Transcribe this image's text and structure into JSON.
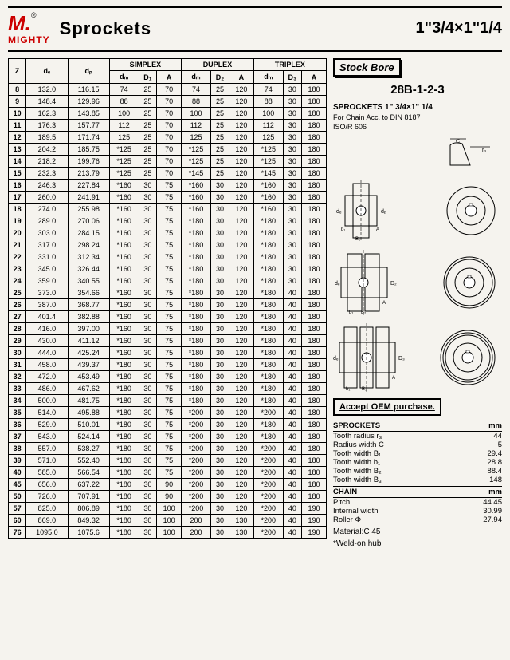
{
  "header": {
    "brand": "MIGHTY",
    "logo": "M.",
    "reg": "®",
    "title": "Sprockets",
    "size": "1\"3/4×1\"1/4"
  },
  "table": {
    "group_headers": [
      "SIMPLEX",
      "DUPLEX",
      "TRIPLEX"
    ],
    "cols": [
      "Z",
      "dₑ",
      "dₚ",
      "dₘ",
      "D₁",
      "A",
      "dₘ",
      "D₂",
      "A",
      "dₘ",
      "D₃",
      "A"
    ],
    "sections": [
      {
        "rows": [
          [
            "8",
            "132.0",
            "116.15",
            "74",
            "25",
            "70",
            "74",
            "25",
            "120",
            "74",
            "30",
            "180"
          ],
          [
            "9",
            "148.4",
            "129.96",
            "88",
            "25",
            "70",
            "88",
            "25",
            "120",
            "88",
            "30",
            "180"
          ],
          [
            "10",
            "162.3",
            "143.85",
            "100",
            "25",
            "70",
            "100",
            "25",
            "120",
            "100",
            "30",
            "180"
          ],
          [
            "11",
            "176.3",
            "157.77",
            "112",
            "25",
            "70",
            "112",
            "25",
            "120",
            "112",
            "30",
            "180"
          ],
          [
            "12",
            "189.5",
            "171.74",
            "125",
            "25",
            "70",
            "125",
            "25",
            "120",
            "125",
            "30",
            "180"
          ]
        ]
      },
      {
        "rows": [
          [
            "13",
            "204.2",
            "185.75",
            "*125",
            "25",
            "70",
            "*125",
            "25",
            "120",
            "*125",
            "30",
            "180"
          ],
          [
            "14",
            "218.2",
            "199.76",
            "*125",
            "25",
            "70",
            "*125",
            "25",
            "120",
            "*125",
            "30",
            "180"
          ],
          [
            "15",
            "232.3",
            "213.79",
            "*125",
            "25",
            "70",
            "*145",
            "25",
            "120",
            "*145",
            "30",
            "180"
          ],
          [
            "16",
            "246.3",
            "227.84",
            "*160",
            "30",
            "75",
            "*160",
            "30",
            "120",
            "*160",
            "30",
            "180"
          ],
          [
            "17",
            "260.0",
            "241.91",
            "*160",
            "30",
            "75",
            "*160",
            "30",
            "120",
            "*160",
            "30",
            "180"
          ]
        ]
      },
      {
        "rows": [
          [
            "18",
            "274.0",
            "255.98",
            "*160",
            "30",
            "75",
            "*160",
            "30",
            "120",
            "*160",
            "30",
            "180"
          ],
          [
            "19",
            "289.0",
            "270.06",
            "*160",
            "30",
            "75",
            "*180",
            "30",
            "120",
            "*180",
            "30",
            "180"
          ],
          [
            "20",
            "303.0",
            "284.15",
            "*160",
            "30",
            "75",
            "*180",
            "30",
            "120",
            "*180",
            "30",
            "180"
          ],
          [
            "21",
            "317.0",
            "298.24",
            "*160",
            "30",
            "75",
            "*180",
            "30",
            "120",
            "*180",
            "30",
            "180"
          ],
          [
            "22",
            "331.0",
            "312.34",
            "*160",
            "30",
            "75",
            "*180",
            "30",
            "120",
            "*180",
            "30",
            "180"
          ]
        ]
      },
      {
        "rows": [
          [
            "23",
            "345.0",
            "326.44",
            "*160",
            "30",
            "75",
            "*180",
            "30",
            "120",
            "*180",
            "30",
            "180"
          ],
          [
            "24",
            "359.0",
            "340.55",
            "*160",
            "30",
            "75",
            "*180",
            "30",
            "120",
            "*180",
            "30",
            "180"
          ],
          [
            "25",
            "373.0",
            "354.66",
            "*160",
            "30",
            "75",
            "*180",
            "30",
            "120",
            "*180",
            "40",
            "180"
          ],
          [
            "26",
            "387.0",
            "368.77",
            "*160",
            "30",
            "75",
            "*180",
            "30",
            "120",
            "*180",
            "40",
            "180"
          ],
          [
            "27",
            "401.4",
            "382.88",
            "*160",
            "30",
            "75",
            "*180",
            "30",
            "120",
            "*180",
            "40",
            "180"
          ]
        ]
      },
      {
        "rows": [
          [
            "28",
            "416.0",
            "397.00",
            "*160",
            "30",
            "75",
            "*180",
            "30",
            "120",
            "*180",
            "40",
            "180"
          ],
          [
            "29",
            "430.0",
            "411.12",
            "*160",
            "30",
            "75",
            "*180",
            "30",
            "120",
            "*180",
            "40",
            "180"
          ],
          [
            "30",
            "444.0",
            "425.24",
            "*160",
            "30",
            "75",
            "*180",
            "30",
            "120",
            "*180",
            "40",
            "180"
          ],
          [
            "31",
            "458.0",
            "439.37",
            "*180",
            "30",
            "75",
            "*180",
            "30",
            "120",
            "*180",
            "40",
            "180"
          ],
          [
            "32",
            "472.0",
            "453.49",
            "*180",
            "30",
            "75",
            "*180",
            "30",
            "120",
            "*180",
            "40",
            "180"
          ]
        ]
      },
      {
        "rows": [
          [
            "33",
            "486.0",
            "467.62",
            "*180",
            "30",
            "75",
            "*180",
            "30",
            "120",
            "*180",
            "40",
            "180"
          ],
          [
            "34",
            "500.0",
            "481.75",
            "*180",
            "30",
            "75",
            "*180",
            "30",
            "120",
            "*180",
            "40",
            "180"
          ],
          [
            "35",
            "514.0",
            "495.88",
            "*180",
            "30",
            "75",
            "*200",
            "30",
            "120",
            "*200",
            "40",
            "180"
          ],
          [
            "36",
            "529.0",
            "510.01",
            "*180",
            "30",
            "75",
            "*200",
            "30",
            "120",
            "*180",
            "40",
            "180"
          ],
          [
            "37",
            "543.0",
            "524.14",
            "*180",
            "30",
            "75",
            "*200",
            "30",
            "120",
            "*180",
            "40",
            "180"
          ]
        ]
      },
      {
        "rows": [
          [
            "38",
            "557.0",
            "538.27",
            "*180",
            "30",
            "75",
            "*200",
            "30",
            "120",
            "*200",
            "40",
            "180"
          ],
          [
            "39",
            "571.0",
            "552.40",
            "*180",
            "30",
            "75",
            "*200",
            "30",
            "120",
            "*200",
            "40",
            "180"
          ],
          [
            "40",
            "585.0",
            "566.54",
            "*180",
            "30",
            "75",
            "*200",
            "30",
            "120",
            "*200",
            "40",
            "180"
          ],
          [
            "45",
            "656.0",
            "637.22",
            "*180",
            "30",
            "90",
            "*200",
            "30",
            "120",
            "*200",
            "40",
            "180"
          ],
          [
            "50",
            "726.0",
            "707.91",
            "*180",
            "30",
            "90",
            "*200",
            "30",
            "120",
            "*200",
            "40",
            "180"
          ]
        ]
      },
      {
        "rows": [
          [
            "57",
            "825.0",
            "806.89",
            "*180",
            "30",
            "100",
            "*200",
            "30",
            "120",
            "*200",
            "40",
            "190"
          ],
          [
            "60",
            "869.0",
            "849.32",
            "*180",
            "30",
            "100",
            "200",
            "30",
            "130",
            "*200",
            "40",
            "190"
          ],
          [
            "76",
            "1095.0",
            "1075.6",
            "*180",
            "30",
            "100",
            "200",
            "30",
            "130",
            "*200",
            "40",
            "190"
          ]
        ]
      }
    ]
  },
  "right": {
    "stock_bore": "Stock Bore",
    "model": "28B-1-2-3",
    "sprockets_line": "SPROCKETS 1\" 3/4×1\" 1/4",
    "chain_line": "For Chain Acc. to DIN 8187",
    "iso_line": "ISO/R 606",
    "accept_oem": "Accept OEM purchase.",
    "specs": {
      "sprockets_header": [
        "SPROCKETS",
        "mm"
      ],
      "sprockets": [
        [
          "Tooth radius r₃",
          "44"
        ],
        [
          "Radius width C",
          "5"
        ],
        [
          "Tooth width B₁",
          "29.4"
        ],
        [
          "Tooth width b₁",
          "28.8"
        ],
        [
          "Tooth width B₂",
          "88.4"
        ],
        [
          "Tooth width B₃",
          "148"
        ]
      ],
      "chain_header": [
        "CHAIN",
        "mm"
      ],
      "chain": [
        [
          "Pitch",
          "44.45"
        ],
        [
          "Internal width",
          "30.99"
        ],
        [
          "Roller Φ",
          "27.94"
        ]
      ],
      "material": "Material:C 45",
      "weld": "*Weld-on hub"
    }
  },
  "colors": {
    "brand": "#cc0000",
    "text": "#000000",
    "bg": "#f5f3ee"
  }
}
